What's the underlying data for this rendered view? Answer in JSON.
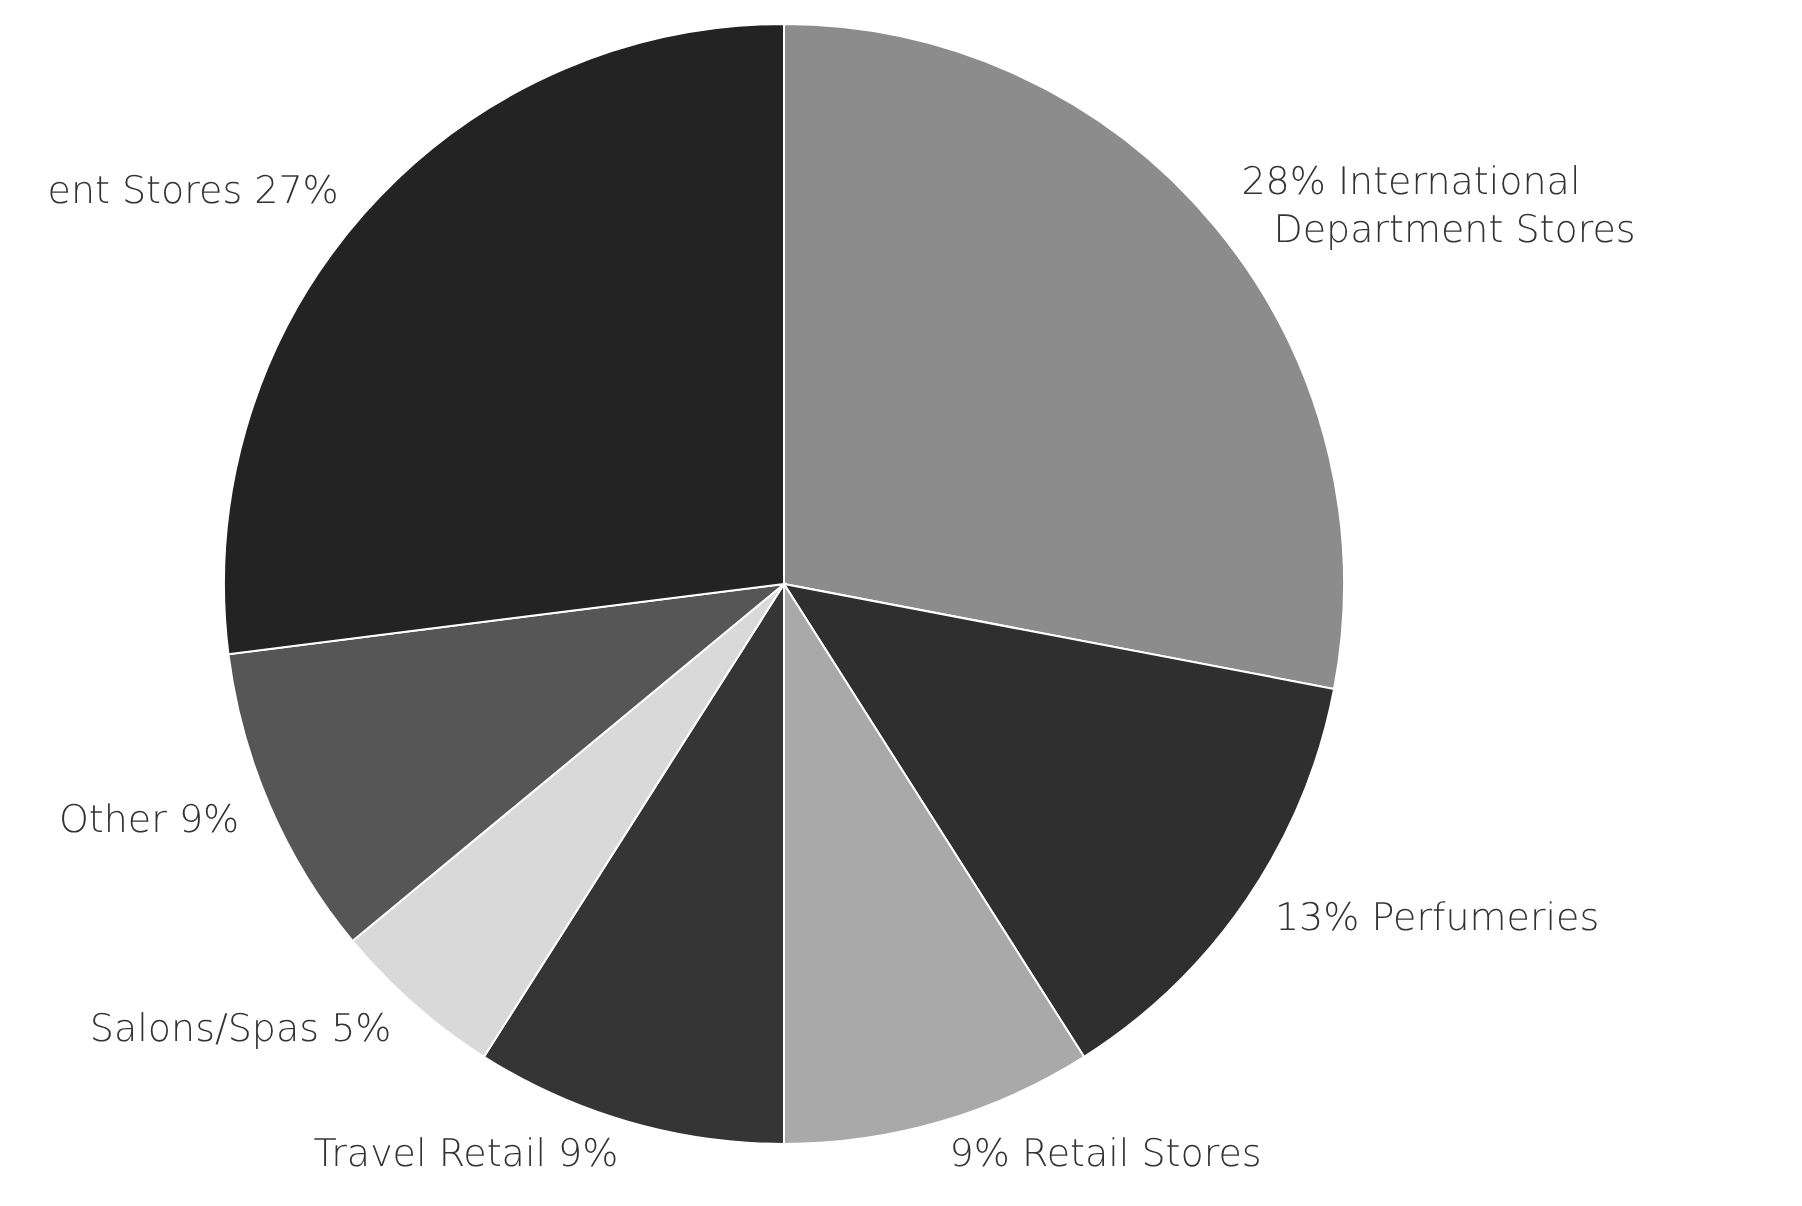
{
  "chart_data": {
    "type": "pie",
    "categories": [
      "International Department Stores",
      "Perfumeries",
      "Retail Stores",
      "Travel Retail",
      "Salons/Spas",
      "Other",
      "ent Stores"
    ],
    "values": [
      28,
      13,
      9,
      9,
      5,
      9,
      27
    ],
    "value_labels": [
      "28%",
      "13%",
      "9%",
      "9%",
      "5%",
      "9%",
      "27%"
    ],
    "colors": [
      "#8c8c8c",
      "#2f2f2f",
      "#a9a9a9",
      "#353535",
      "#d9d9d9",
      "#565656",
      "#232323"
    ]
  }
}
